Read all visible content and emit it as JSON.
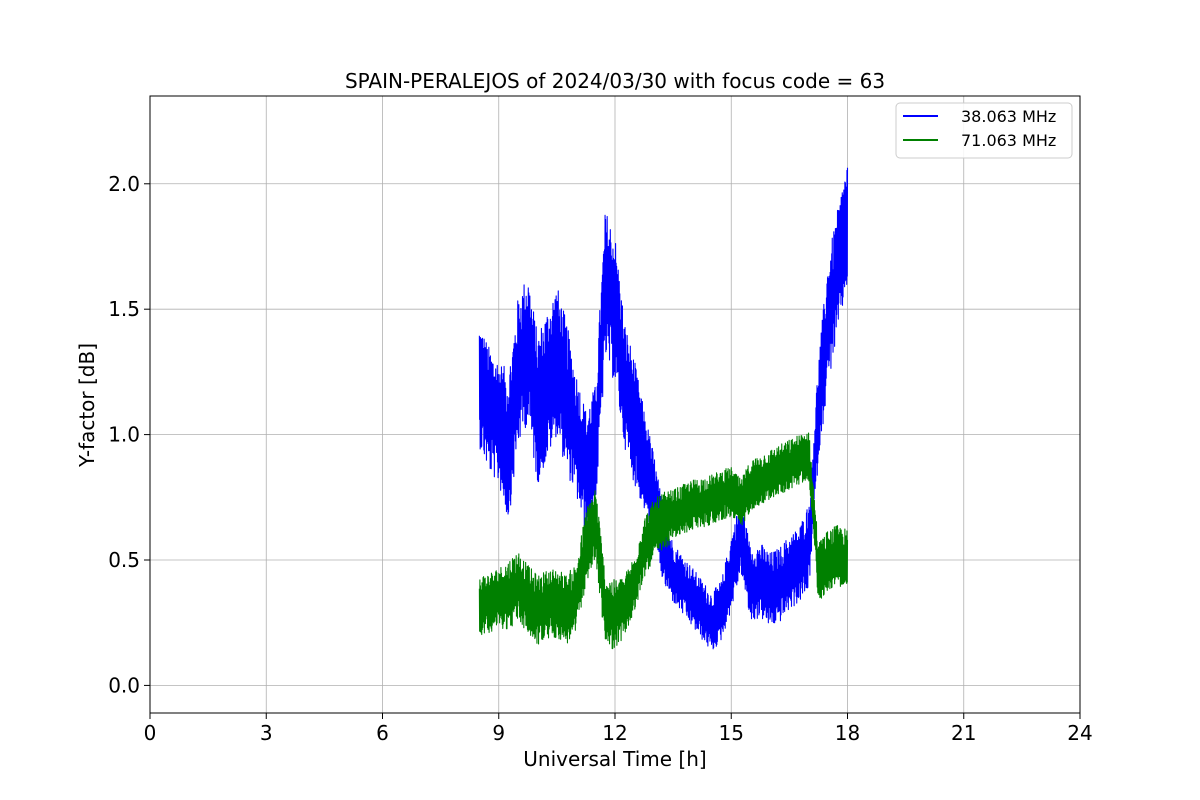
{
  "chart_data": {
    "type": "line",
    "title": "SPAIN-PERALEJOS of 2024/03/30 with focus code = 63",
    "xlabel": "Universal Time [h]",
    "ylabel": "Y-factor [dB]",
    "xlim": [
      0,
      24
    ],
    "ylim": [
      -0.11,
      2.35
    ],
    "xticks": [
      0,
      3,
      6,
      9,
      12,
      15,
      18,
      21,
      24
    ],
    "xtick_labels": [
      "0",
      "3",
      "6",
      "9",
      "12",
      "15",
      "18",
      "21",
      "24"
    ],
    "yticks": [
      0.0,
      0.5,
      1.0,
      1.5,
      2.0
    ],
    "ytick_labels": [
      "0.0",
      "0.5",
      "1.0",
      "1.5",
      "2.0"
    ],
    "grid": true,
    "legend_position": "top-right",
    "series": [
      {
        "name": "38.063 MHz",
        "color": "#0000ff",
        "x": [
          8.5,
          8.75,
          9.0,
          9.25,
          9.5,
          9.75,
          10.0,
          10.25,
          10.5,
          10.75,
          11.0,
          11.25,
          11.5,
          11.75,
          12.0,
          12.25,
          12.5,
          12.75,
          13.0,
          13.25,
          13.5,
          13.75,
          14.0,
          14.25,
          14.5,
          14.75,
          15.0,
          15.25,
          15.5,
          15.75,
          16.0,
          16.25,
          16.5,
          16.75,
          17.0,
          17.25,
          17.5,
          17.75,
          18.0
        ],
        "mean": [
          1.2,
          1.1,
          1.05,
          0.95,
          1.25,
          1.35,
          1.1,
          1.2,
          1.3,
          1.15,
          1.0,
          0.85,
          0.95,
          1.6,
          1.5,
          1.2,
          1.05,
          0.9,
          0.75,
          0.55,
          0.45,
          0.4,
          0.35,
          0.3,
          0.25,
          0.3,
          0.45,
          0.6,
          0.4,
          0.42,
          0.38,
          0.4,
          0.45,
          0.48,
          0.55,
          1.1,
          1.45,
          1.65,
          1.85
        ],
        "spread": [
          0.25,
          0.25,
          0.25,
          0.3,
          0.3,
          0.3,
          0.3,
          0.3,
          0.3,
          0.3,
          0.25,
          0.25,
          0.25,
          0.3,
          0.3,
          0.25,
          0.25,
          0.2,
          0.18,
          0.15,
          0.12,
          0.12,
          0.12,
          0.12,
          0.12,
          0.12,
          0.15,
          0.15,
          0.15,
          0.15,
          0.15,
          0.15,
          0.15,
          0.15,
          0.18,
          0.2,
          0.25,
          0.25,
          0.25
        ]
      },
      {
        "name": "71.063 MHz",
        "color": "#008000",
        "x": [
          8.5,
          8.75,
          9.0,
          9.25,
          9.5,
          9.75,
          10.0,
          10.25,
          10.5,
          10.75,
          11.0,
          11.25,
          11.5,
          11.75,
          12.0,
          12.25,
          12.5,
          12.75,
          13.0,
          13.25,
          13.5,
          13.75,
          14.0,
          14.25,
          14.5,
          14.75,
          15.0,
          15.25,
          15.5,
          15.75,
          16.0,
          16.25,
          16.5,
          16.75,
          17.0,
          17.25,
          17.5,
          17.75,
          18.0
        ],
        "mean": [
          0.32,
          0.33,
          0.35,
          0.36,
          0.4,
          0.34,
          0.3,
          0.32,
          0.33,
          0.3,
          0.35,
          0.55,
          0.65,
          0.3,
          0.28,
          0.32,
          0.4,
          0.55,
          0.62,
          0.65,
          0.68,
          0.7,
          0.72,
          0.73,
          0.74,
          0.76,
          0.77,
          0.72,
          0.8,
          0.82,
          0.84,
          0.86,
          0.88,
          0.9,
          0.92,
          0.45,
          0.5,
          0.52,
          0.5
        ],
        "spread": [
          0.12,
          0.12,
          0.12,
          0.14,
          0.14,
          0.14,
          0.14,
          0.14,
          0.14,
          0.14,
          0.14,
          0.15,
          0.15,
          0.14,
          0.14,
          0.12,
          0.12,
          0.12,
          0.12,
          0.12,
          0.1,
          0.1,
          0.1,
          0.1,
          0.1,
          0.1,
          0.1,
          0.1,
          0.1,
          0.1,
          0.1,
          0.1,
          0.1,
          0.1,
          0.1,
          0.12,
          0.12,
          0.12,
          0.12
        ]
      }
    ]
  }
}
